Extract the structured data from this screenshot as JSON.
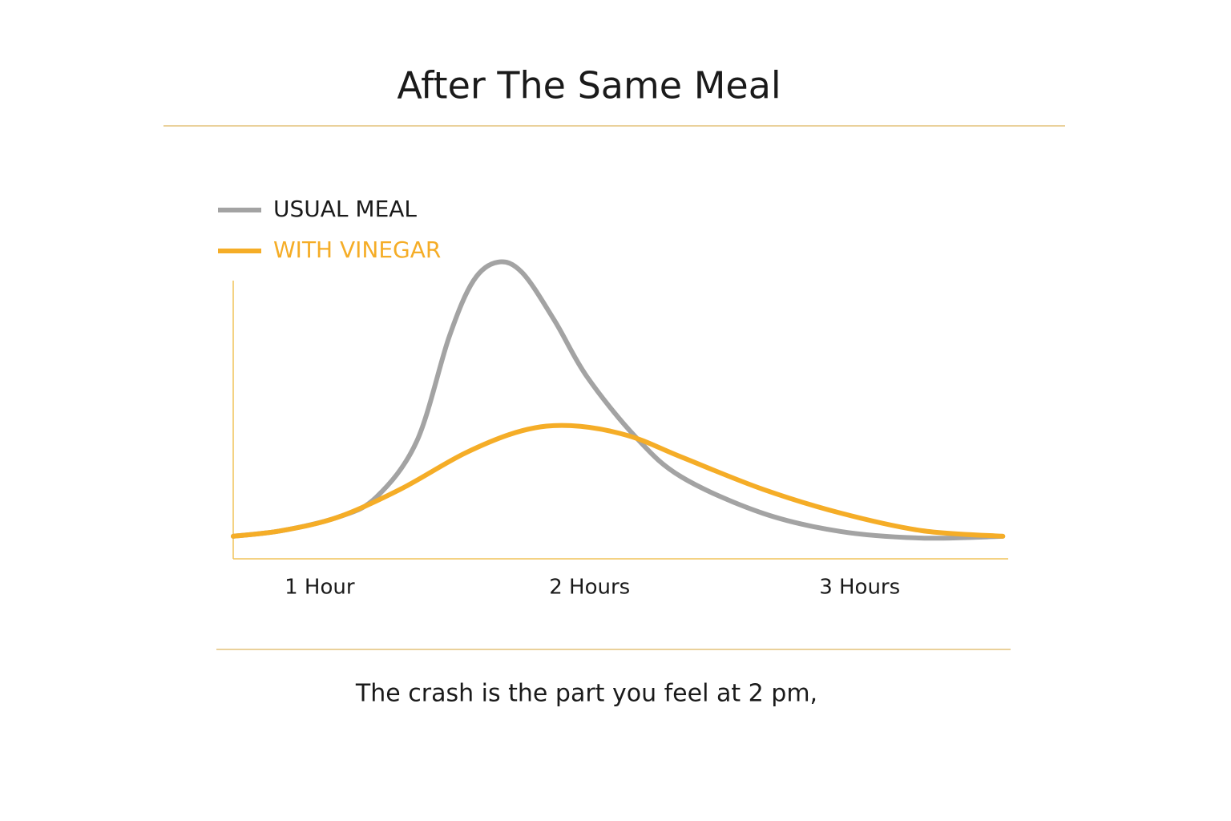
{
  "chart_data": {
    "type": "line",
    "title": "After The Same Meal",
    "caption": "The crash is the part you feel at 2 pm,",
    "xlim": [
      0.68,
      3.55
    ],
    "xticks": [
      {
        "value": 1,
        "label": "1 Hour"
      },
      {
        "value": 2,
        "label": "2 Hours"
      },
      {
        "value": 3,
        "label": "3 Hours"
      }
    ],
    "ylim": [
      0,
      100
    ],
    "series": [
      {
        "name": "USUAL MEAL",
        "color": "#a3a3a3",
        "x": [
          0.68,
          0.86,
          1.07,
          1.21,
          1.36,
          1.48,
          1.57,
          1.66,
          1.75,
          1.87,
          1.99,
          2.17,
          2.34,
          2.64,
          2.93,
          3.23,
          3.53
        ],
        "values": [
          7.6,
          9.5,
          14.1,
          20.8,
          39.7,
          74.9,
          93.8,
          100,
          96.5,
          80.3,
          61.4,
          41.1,
          27.6,
          15.4,
          9.2,
          7.0,
          7.6
        ]
      },
      {
        "name": "WITH VINEGAR",
        "color": "#f5ad27",
        "x": [
          0.68,
          0.86,
          1.07,
          1.3,
          1.54,
          1.75,
          1.93,
          2.14,
          2.34,
          2.64,
          2.93,
          3.23,
          3.53
        ],
        "values": [
          7.6,
          9.5,
          14.1,
          23.5,
          35.7,
          43.2,
          44.9,
          41.6,
          34.3,
          23.5,
          15.4,
          9.5,
          7.6
        ]
      }
    ]
  }
}
